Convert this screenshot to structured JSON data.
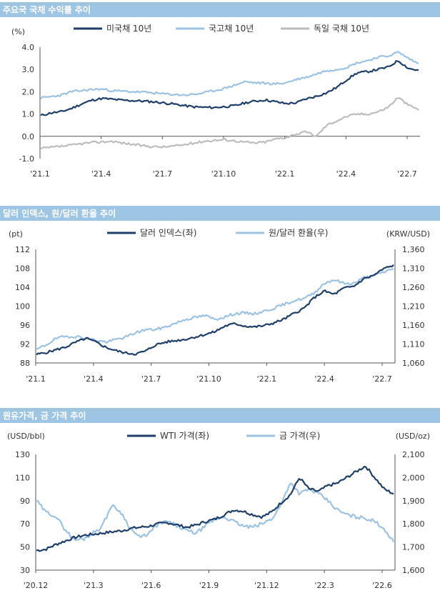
{
  "colors": {
    "dark": "#1f3f6b",
    "light": "#9cc3e3",
    "gray": "#bdbdbd",
    "header": "#9fc5e4"
  },
  "chart_data": [
    {
      "type": "line",
      "title": "주요국 국채 수익률 추이",
      "ylabel": "(%)",
      "ylim": [
        -1.0,
        4.0
      ],
      "yticks": [
        "4.0",
        "3.0",
        "2.0",
        "1.0",
        "0.0",
        "-1.0"
      ],
      "xticks": [
        "'21.1",
        "'21.4",
        "'21.7",
        "'21.10",
        "'22.1",
        "'22.4",
        "'22.7"
      ],
      "series": [
        {
          "name": "미국채 10년",
          "values": [
            0.93,
            1.05,
            1.1,
            1.25,
            1.45,
            1.62,
            1.7,
            1.66,
            1.62,
            1.6,
            1.58,
            1.55,
            1.5,
            1.45,
            1.38,
            1.32,
            1.3,
            1.29,
            1.33,
            1.37,
            1.5,
            1.58,
            1.63,
            1.55,
            1.47,
            1.5,
            1.68,
            1.8,
            1.95,
            2.2,
            2.55,
            2.85,
            2.9,
            3.0,
            3.1,
            3.4,
            3.05,
            2.95
          ]
        },
        {
          "name": "국고채 10년",
          "values": [
            1.72,
            1.78,
            1.85,
            2.0,
            2.05,
            2.1,
            2.12,
            2.05,
            2.02,
            2.0,
            1.98,
            1.95,
            1.9,
            1.88,
            1.85,
            1.88,
            1.95,
            2.05,
            2.15,
            2.3,
            2.45,
            2.4,
            2.38,
            2.35,
            2.4,
            2.55,
            2.65,
            2.8,
            2.95,
            3.0,
            3.1,
            3.3,
            3.4,
            3.55,
            3.6,
            3.78,
            3.5,
            3.25
          ]
        },
        {
          "name": "독일 국채 10년",
          "values": [
            -0.55,
            -0.5,
            -0.45,
            -0.4,
            -0.33,
            -0.28,
            -0.25,
            -0.22,
            -0.3,
            -0.36,
            -0.42,
            -0.46,
            -0.48,
            -0.44,
            -0.38,
            -0.3,
            -0.22,
            -0.18,
            -0.15,
            -0.2,
            -0.26,
            -0.3,
            -0.25,
            -0.12,
            -0.05,
            0.1,
            0.2,
            0.0,
            0.5,
            0.7,
            0.9,
            1.0,
            1.0,
            1.1,
            1.3,
            1.75,
            1.4,
            1.2
          ]
        }
      ]
    },
    {
      "type": "line",
      "title": "달러 인덱스, 원/달러 환율 추이",
      "ylabel": "(pt)",
      "y2label": "(KRW/USD)",
      "ylim": [
        88,
        112
      ],
      "y2lim": [
        1060,
        1360
      ],
      "yticks": [
        "112",
        "108",
        "104",
        "100",
        "96",
        "92",
        "88"
      ],
      "y2ticks": [
        "1,360",
        "1,310",
        "1,260",
        "1,210",
        "1,160",
        "1,110",
        "1,060"
      ],
      "xticks": [
        "'21.1",
        "'21.4",
        "'21.7",
        "'21.10",
        "'22.1",
        "'22.4",
        "'22.7"
      ],
      "series": [
        {
          "name": "달러 인덱스(좌)",
          "axis": "left",
          "values": [
            89.8,
            90.2,
            90.8,
            91.4,
            92.4,
            93.2,
            92.4,
            91.3,
            90.6,
            90.1,
            89.9,
            90.5,
            91.8,
            92.4,
            92.7,
            93.0,
            93.5,
            94.0,
            94.6,
            95.8,
            96.3,
            95.8,
            95.6,
            95.9,
            96.5,
            97.3,
            98.5,
            99.6,
            101.8,
            103.2,
            102.5,
            103.8,
            104.2,
            105.8,
            106.5,
            107.9,
            108.6
          ]
        },
        {
          "name": "원/달러 환율(우)",
          "axis": "right",
          "values": [
            1095,
            1108,
            1125,
            1130,
            1130,
            1125,
            1120,
            1115,
            1122,
            1128,
            1140,
            1148,
            1148,
            1155,
            1165,
            1175,
            1180,
            1185,
            1175,
            1182,
            1190,
            1192,
            1190,
            1197,
            1205,
            1215,
            1225,
            1230,
            1245,
            1270,
            1280,
            1270,
            1270,
            1285,
            1290,
            1300,
            1310
          ]
        }
      ]
    },
    {
      "type": "line",
      "title": "원유가격, 금 가격 추이",
      "ylabel": "(USD/bbl)",
      "y2label": "(USD/oz)",
      "ylim": [
        30,
        130
      ],
      "y2lim": [
        1600,
        2100
      ],
      "yticks": [
        "130",
        "110",
        "90",
        "70",
        "50",
        "30"
      ],
      "y2ticks": [
        "2,100",
        "2,000",
        "1,900",
        "1,800",
        "1,700",
        "1,600"
      ],
      "xticks": [
        "'20.12",
        "'21.3",
        "'21.6",
        "'21.9",
        "'21.12",
        "'22.3",
        "'22.6"
      ],
      "series": [
        {
          "name": "WTI 가격(좌)",
          "axis": "left",
          "values": [
            47,
            48,
            52,
            55,
            58,
            60,
            61,
            62,
            63,
            64,
            66,
            67,
            68,
            70,
            71,
            69,
            67,
            69,
            72,
            74,
            78,
            82,
            81,
            78,
            76,
            80,
            88,
            95,
            110,
            100,
            98,
            103,
            105,
            110,
            115,
            120,
            110,
            100,
            96
          ]
        },
        {
          "name": "금 가격(우)",
          "axis": "right",
          "values": [
            1900,
            1850,
            1835,
            1780,
            1730,
            1735,
            1760,
            1790,
            1880,
            1850,
            1780,
            1740,
            1760,
            1800,
            1810,
            1790,
            1770,
            1760,
            1790,
            1820,
            1830,
            1810,
            1790,
            1785,
            1800,
            1820,
            1880,
            1980,
            1930,
            1950,
            1930,
            1900,
            1860,
            1840,
            1830,
            1825,
            1810,
            1780,
            1720
          ]
        }
      ]
    }
  ]
}
